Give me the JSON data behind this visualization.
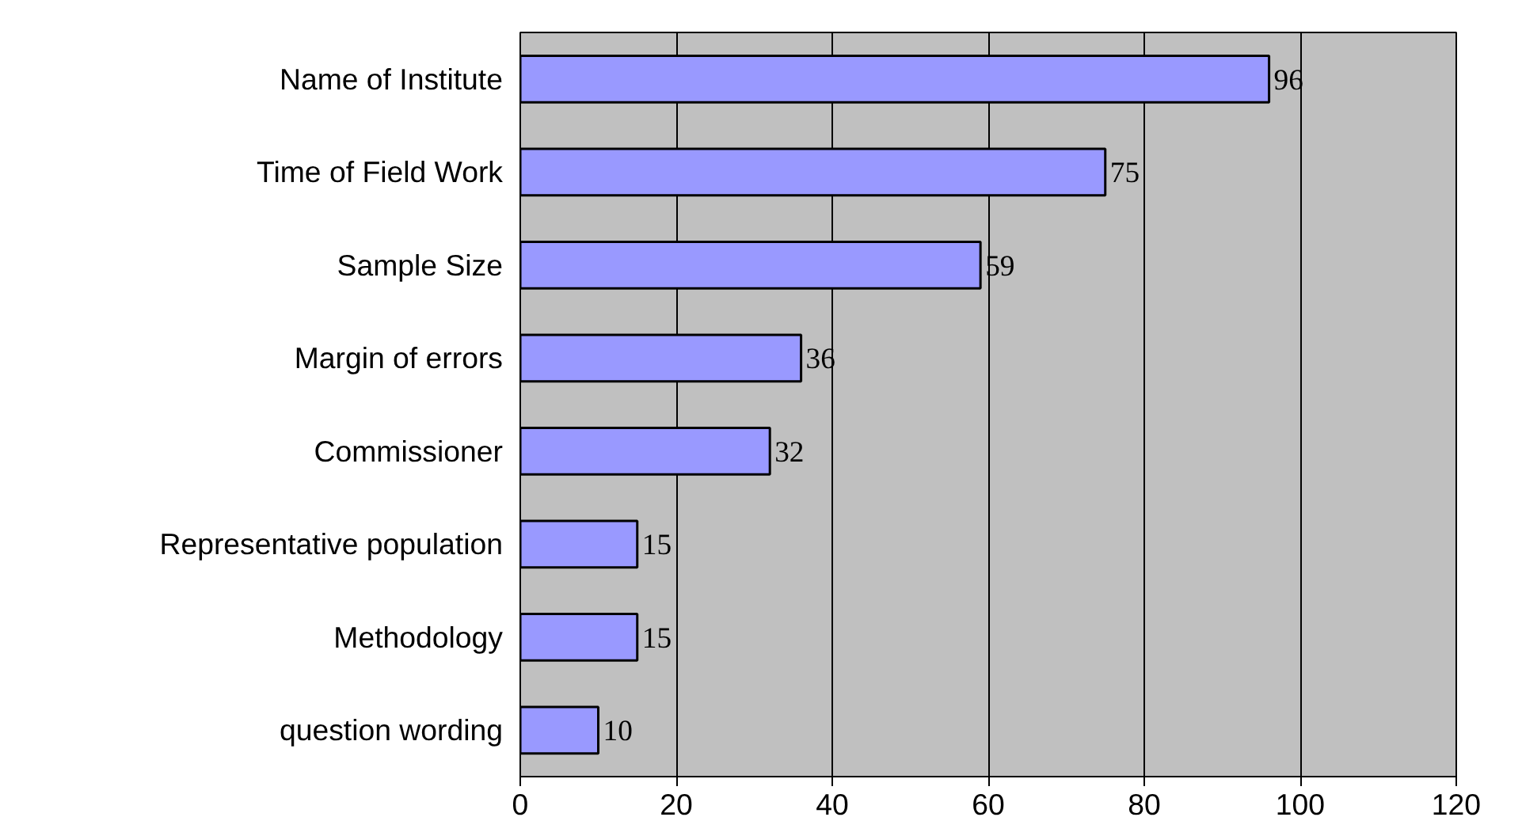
{
  "chart_data": {
    "type": "bar",
    "orientation": "horizontal",
    "categories": [
      "Name of Institute",
      "Time of Field Work",
      "Sample Size",
      "Margin of errors",
      "Commissioner",
      "Representative population",
      "Methodology",
      "question wording"
    ],
    "values": [
      96,
      75,
      59,
      36,
      32,
      15,
      15,
      10
    ],
    "color": "#9999ff",
    "xlim": [
      0,
      120
    ],
    "xticks": [
      0,
      20,
      40,
      60,
      80,
      100,
      120
    ],
    "grid": "x",
    "data_labels": true
  }
}
